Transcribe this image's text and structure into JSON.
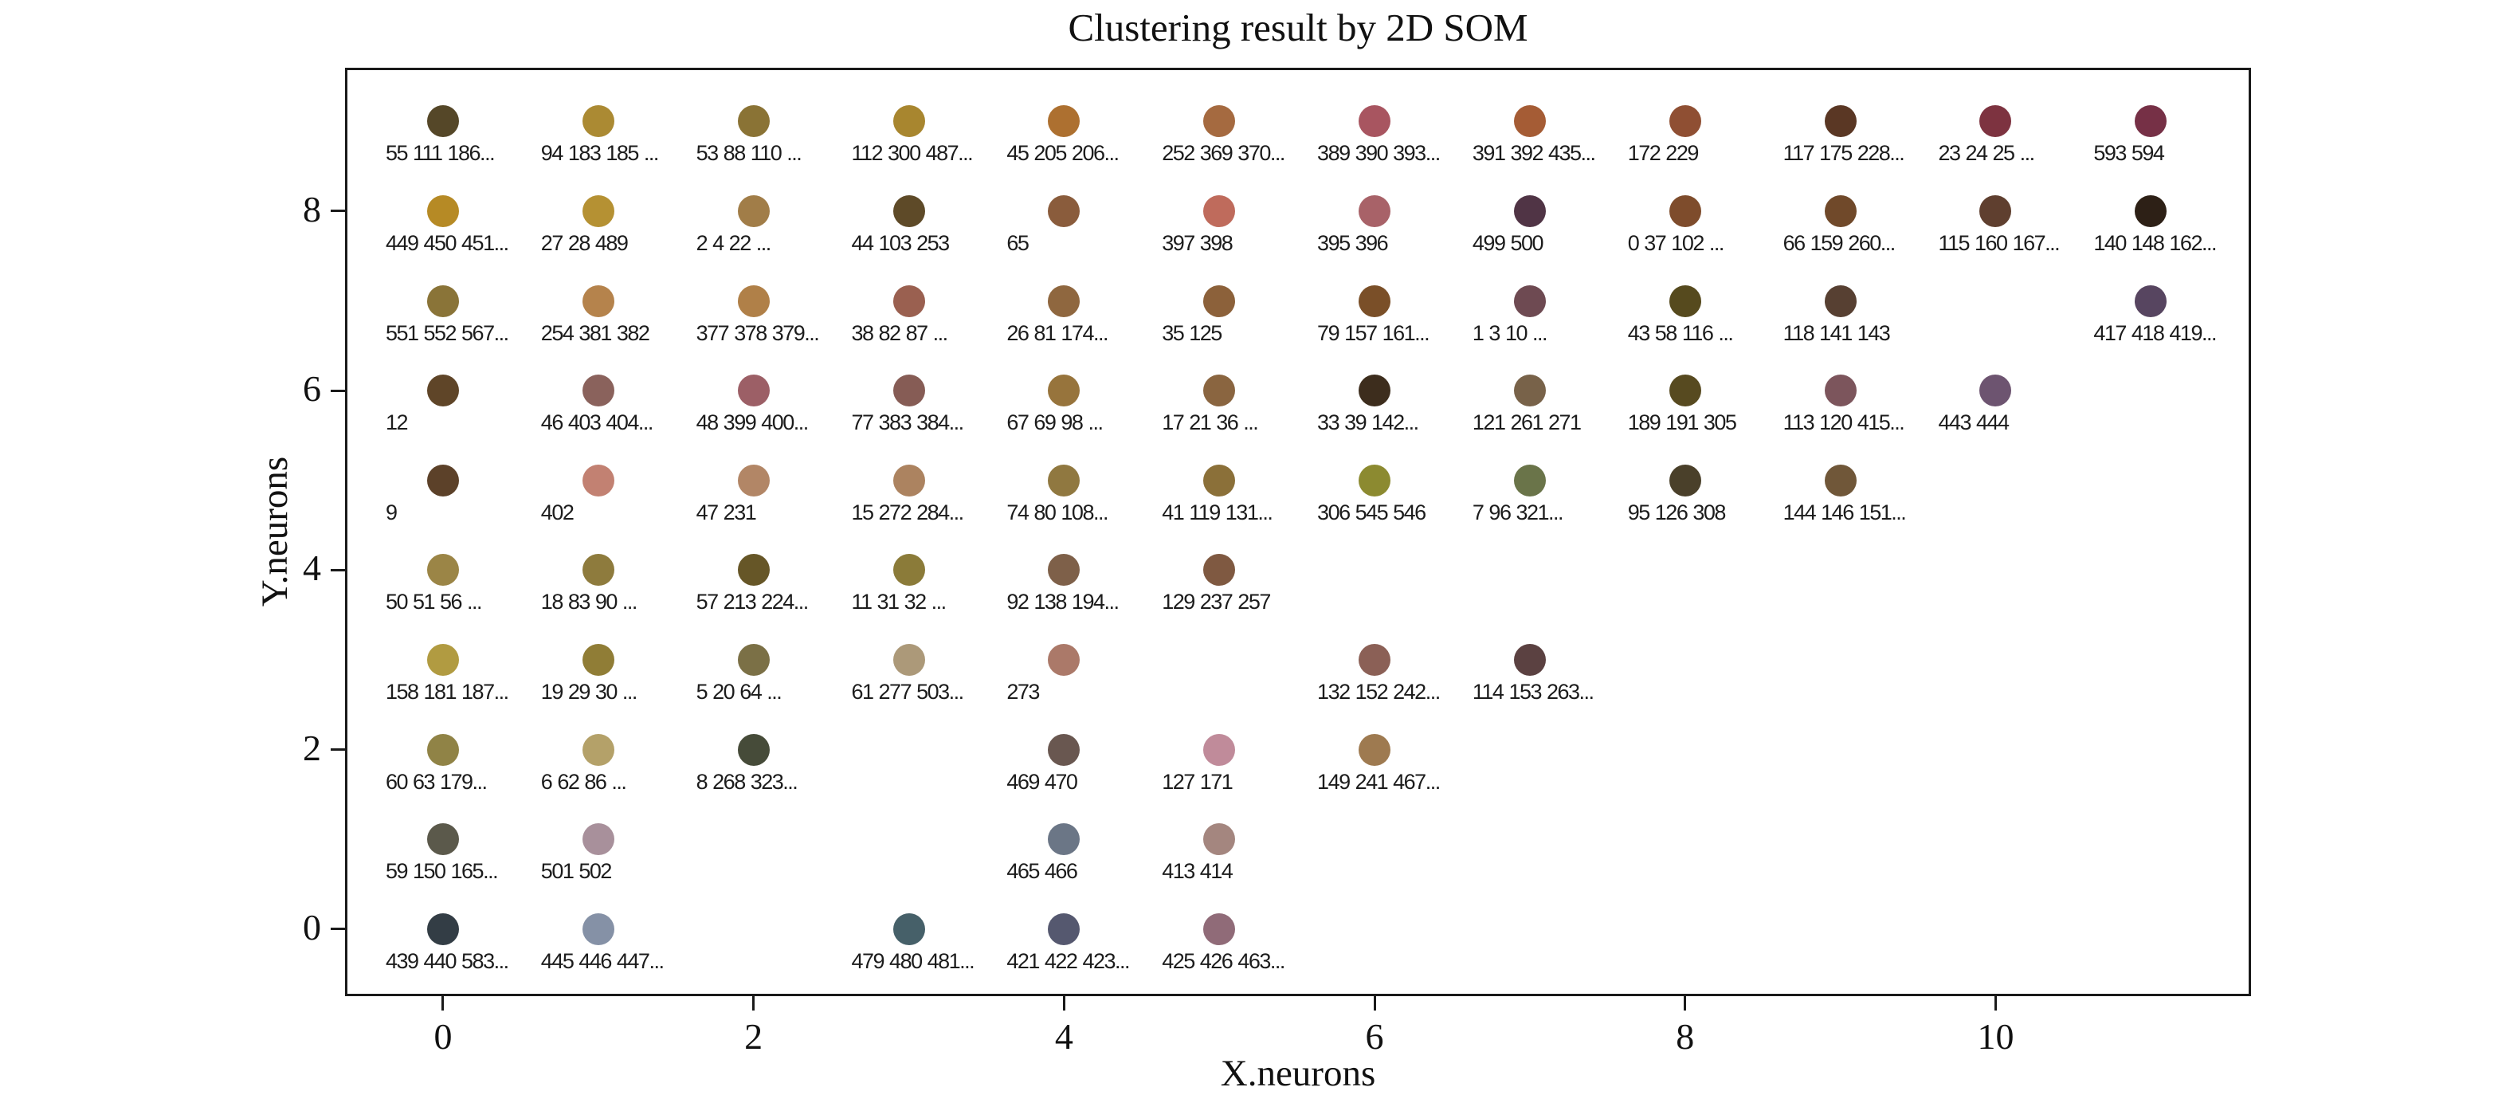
{
  "title": "Clustering result by 2D SOM",
  "chart_data": {
    "type": "scatter",
    "title": "Clustering result by 2D SOM",
    "xlabel": "X.neurons",
    "ylabel": "Y.neurons",
    "xlim": [
      -0.631,
      11.645
    ],
    "ylim": [
      -0.746,
      9.598
    ],
    "x_ticks": [
      0,
      2,
      4,
      6,
      8,
      10
    ],
    "y_ticks": [
      0,
      2,
      4,
      6,
      8
    ],
    "grid": false,
    "legend": "none",
    "marker_description": "filled circle colored by cluster, member ids listed under each marker",
    "points": [
      {
        "x": 0,
        "y": 9,
        "label": "55 111 186...",
        "color": "#554728"
      },
      {
        "x": 1,
        "y": 9,
        "label": "94 183 185 ...",
        "color": "#ab8a33"
      },
      {
        "x": 2,
        "y": 9,
        "label": "53 88 110 ...",
        "color": "#8a7335"
      },
      {
        "x": 3,
        "y": 9,
        "label": "112 300 487...",
        "color": "#a8862f"
      },
      {
        "x": 4,
        "y": 9,
        "label": "45 205 206...",
        "color": "#ad7030"
      },
      {
        "x": 5,
        "y": 9,
        "label": "252 369 370...",
        "color": "#a56a40"
      },
      {
        "x": 6,
        "y": 9,
        "label": "389 390 393...",
        "color": "#a85560"
      },
      {
        "x": 7,
        "y": 9,
        "label": "391 392 435...",
        "color": "#a55c35"
      },
      {
        "x": 8,
        "y": 9,
        "label": "172 229",
        "color": "#8f4f33"
      },
      {
        "x": 9,
        "y": 9,
        "label": "117 175 228...",
        "color": "#5a3724"
      },
      {
        "x": 10,
        "y": 9,
        "label": "23 24 25 ...",
        "color": "#7d3340"
      },
      {
        "x": 11,
        "y": 9,
        "label": "593 594",
        "color": "#763046"
      },
      {
        "x": 0,
        "y": 8,
        "label": "449 450 451...",
        "color": "#b68a25"
      },
      {
        "x": 1,
        "y": 8,
        "label": "27 28 489",
        "color": "#b59133"
      },
      {
        "x": 2,
        "y": 8,
        "label": "2 4 22 ...",
        "color": "#a17d48"
      },
      {
        "x": 3,
        "y": 8,
        "label": "44 103 253",
        "color": "#5e4a28"
      },
      {
        "x": 4,
        "y": 8,
        "label": "65",
        "color": "#8a5c3c"
      },
      {
        "x": 5,
        "y": 8,
        "label": "397 398",
        "color": "#bf6b5c"
      },
      {
        "x": 6,
        "y": 8,
        "label": "395 396",
        "color": "#a86268"
      },
      {
        "x": 7,
        "y": 8,
        "label": "499 500",
        "color": "#503445"
      },
      {
        "x": 8,
        "y": 8,
        "label": "0 37 102 ...",
        "color": "#7e4c2c"
      },
      {
        "x": 9,
        "y": 8,
        "label": "66 159 260...",
        "color": "#70492a"
      },
      {
        "x": 10,
        "y": 8,
        "label": "115 160 167...",
        "color": "#5f3f2f"
      },
      {
        "x": 11,
        "y": 8,
        "label": "140 148 162...",
        "color": "#2d2016"
      },
      {
        "x": 0,
        "y": 7,
        "label": "551 552 567...",
        "color": "#8a7438"
      },
      {
        "x": 1,
        "y": 7,
        "label": "254 381 382",
        "color": "#b5834c"
      },
      {
        "x": 2,
        "y": 7,
        "label": "377 378 379...",
        "color": "#b08048"
      },
      {
        "x": 3,
        "y": 7,
        "label": "38 82 87 ...",
        "color": "#9a6050"
      },
      {
        "x": 4,
        "y": 7,
        "label": "26 81 174...",
        "color": "#8f673f"
      },
      {
        "x": 5,
        "y": 7,
        "label": "35 125",
        "color": "#8c613a"
      },
      {
        "x": 6,
        "y": 7,
        "label": "79 157 161...",
        "color": "#7a4f28"
      },
      {
        "x": 7,
        "y": 7,
        "label": "1 3 10 ...",
        "color": "#6e4a52"
      },
      {
        "x": 8,
        "y": 7,
        "label": "43 58 116 ...",
        "color": "#564a1e"
      },
      {
        "x": 9,
        "y": 7,
        "label": "118 141 143",
        "color": "#574032"
      },
      {
        "x": 11,
        "y": 7,
        "label": "417 418 419...",
        "color": "#574560"
      },
      {
        "x": 0,
        "y": 6,
        "label": "12",
        "color": "#5f4528"
      },
      {
        "x": 1,
        "y": 6,
        "label": "46 403 404...",
        "color": "#8a625c"
      },
      {
        "x": 2,
        "y": 6,
        "label": "48 399 400...",
        "color": "#9c5f66"
      },
      {
        "x": 3,
        "y": 6,
        "label": "77 383 384...",
        "color": "#865c55"
      },
      {
        "x": 4,
        "y": 6,
        "label": "67 69 98 ...",
        "color": "#97743c"
      },
      {
        "x": 5,
        "y": 6,
        "label": "17 21 36 ...",
        "color": "#8a6540"
      },
      {
        "x": 6,
        "y": 6,
        "label": "33 39 142...",
        "color": "#3d2d1d"
      },
      {
        "x": 7,
        "y": 6,
        "label": "121 261 271",
        "color": "#786249"
      },
      {
        "x": 8,
        "y": 6,
        "label": "189 191 305",
        "color": "#574a20"
      },
      {
        "x": 9,
        "y": 6,
        "label": "113 120 415...",
        "color": "#7c555c"
      },
      {
        "x": 10,
        "y": 6,
        "label": "443 444",
        "color": "#6d5470"
      },
      {
        "x": 0,
        "y": 5,
        "label": "9",
        "color": "#5c4129"
      },
      {
        "x": 1,
        "y": 5,
        "label": "402",
        "color": "#c28172"
      },
      {
        "x": 2,
        "y": 5,
        "label": "47 231",
        "color": "#b28666"
      },
      {
        "x": 3,
        "y": 5,
        "label": "15 272 284...",
        "color": "#ac8360"
      },
      {
        "x": 4,
        "y": 5,
        "label": "74 80 108...",
        "color": "#907840"
      },
      {
        "x": 5,
        "y": 5,
        "label": "41 119 131...",
        "color": "#8b7039"
      },
      {
        "x": 6,
        "y": 5,
        "label": "306 545 546",
        "color": "#8c8a30"
      },
      {
        "x": 7,
        "y": 5,
        "label": "7 96 321...",
        "color": "#6a7449"
      },
      {
        "x": 8,
        "y": 5,
        "label": "95 126 308",
        "color": "#4a402a"
      },
      {
        "x": 9,
        "y": 5,
        "label": "144 146 151...",
        "color": "#705739"
      },
      {
        "x": 0,
        "y": 4,
        "label": "50 51 56 ...",
        "color": "#9b8546"
      },
      {
        "x": 1,
        "y": 4,
        "label": "18 83 90 ...",
        "color": "#8e7b3d"
      },
      {
        "x": 2,
        "y": 4,
        "label": "57 213 224...",
        "color": "#665627"
      },
      {
        "x": 3,
        "y": 4,
        "label": "11 31 32 ...",
        "color": "#8b7b39"
      },
      {
        "x": 4,
        "y": 4,
        "label": "92 138 194...",
        "color": "#7e6049"
      },
      {
        "x": 5,
        "y": 4,
        "label": "129 237 257",
        "color": "#7f5941"
      },
      {
        "x": 0,
        "y": 3,
        "label": "158 181 187...",
        "color": "#b19b41"
      },
      {
        "x": 1,
        "y": 3,
        "label": "19 29 30 ...",
        "color": "#907d36"
      },
      {
        "x": 2,
        "y": 3,
        "label": "5 20 64 ...",
        "color": "#7b7046"
      },
      {
        "x": 3,
        "y": 3,
        "label": "61 277 503...",
        "color": "#ac9979"
      },
      {
        "x": 4,
        "y": 3,
        "label": "273",
        "color": "#ab7969"
      },
      {
        "x": 6,
        "y": 3,
        "label": "132 152 242...",
        "color": "#8b6056"
      },
      {
        "x": 7,
        "y": 3,
        "label": "114 153 263...",
        "color": "#5b4141"
      },
      {
        "x": 0,
        "y": 2,
        "label": "60 63 179...",
        "color": "#908346"
      },
      {
        "x": 1,
        "y": 2,
        "label": "6 62 86 ...",
        "color": "#b4a169"
      },
      {
        "x": 2,
        "y": 2,
        "label": "8 268 323...",
        "color": "#464b39"
      },
      {
        "x": 4,
        "y": 2,
        "label": "469 470",
        "color": "#695750"
      },
      {
        "x": 5,
        "y": 2,
        "label": "127 171",
        "color": "#c08b9a"
      },
      {
        "x": 6,
        "y": 2,
        "label": "149 241 467...",
        "color": "#9e7a50"
      },
      {
        "x": 0,
        "y": 1,
        "label": "59 150 165...",
        "color": "#5b594b"
      },
      {
        "x": 1,
        "y": 1,
        "label": "501 502",
        "color": "#a8909b"
      },
      {
        "x": 4,
        "y": 1,
        "label": "465 466",
        "color": "#6b7686"
      },
      {
        "x": 5,
        "y": 1,
        "label": "413 414",
        "color": "#a4867f"
      },
      {
        "x": 0,
        "y": 0,
        "label": "439 440 583...",
        "color": "#333d45"
      },
      {
        "x": 1,
        "y": 0,
        "label": "445 446 447...",
        "color": "#8591a6"
      },
      {
        "x": 3,
        "y": 0,
        "label": "479 480 481...",
        "color": "#466069"
      },
      {
        "x": 4,
        "y": 0,
        "label": "421 422 423...",
        "color": "#55586f"
      },
      {
        "x": 5,
        "y": 0,
        "label": "425 426 463...",
        "color": "#906b78"
      }
    ]
  }
}
